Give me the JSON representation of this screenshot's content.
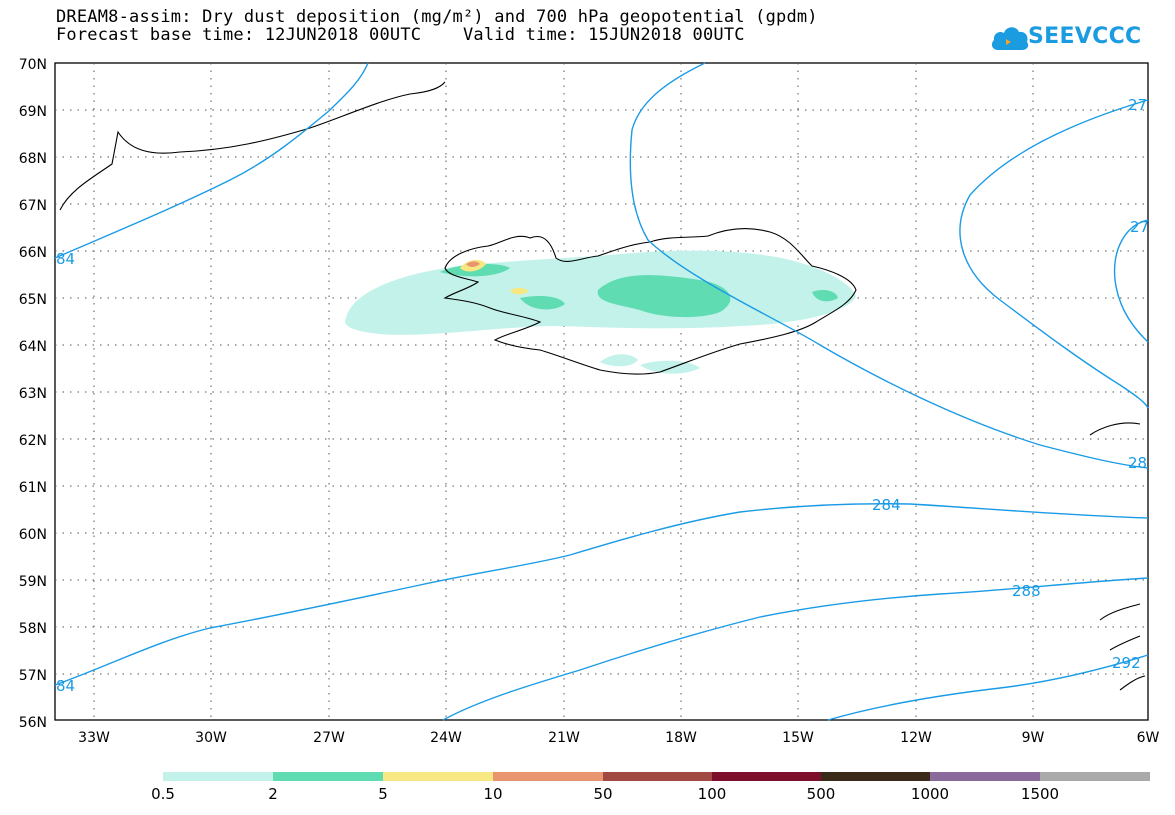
{
  "header": {
    "title_line1": "DREAM8-assim: Dry dust deposition (mg/m²) and 700 hPa geopotential (gpdm)",
    "title_line2": "Forecast base time: 12JUN2018 00UTC    Valid time: 15JUN2018 00UTC"
  },
  "logo": {
    "text": "SEEVCCC",
    "icon": "cloud-icon"
  },
  "map": {
    "lat_labels": [
      "70N",
      "69N",
      "68N",
      "67N",
      "66N",
      "65N",
      "64N",
      "63N",
      "62N",
      "61N",
      "60N",
      "59N",
      "58N",
      "57N",
      "56N"
    ],
    "lon_labels": [
      "33W",
      "30W",
      "27W",
      "24W",
      "21W",
      "18W",
      "15W",
      "12W",
      "9W",
      "6W"
    ],
    "contour_labels": [
      "84",
      "84",
      "284",
      "288",
      "27",
      "27",
      "28",
      "292"
    ],
    "contour_color": "#1a9be6"
  },
  "legend": {
    "labels": [
      "0.5",
      "2",
      "5",
      "10",
      "50",
      "100",
      "500",
      "1000",
      "1500"
    ],
    "colors": [
      "#c2f2ea",
      "#5fdcb2",
      "#f7e884",
      "#e99670",
      "#a04a42",
      "#7e0f2c",
      "#3a2a1a",
      "#8a6a9a",
      "#aaaaaa"
    ]
  }
}
